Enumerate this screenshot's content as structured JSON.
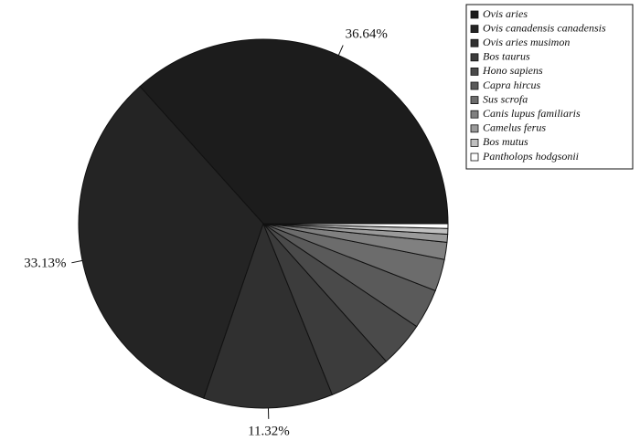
{
  "chart_data": {
    "type": "pie",
    "categories": [
      "Ovis aries",
      "Ovis canadensis canadensis",
      "Ovis aries musimon",
      "Bos taurus",
      "Hono sapiens",
      "Capra hircus",
      "Sus scrofa",
      "Canis lupus familiaris",
      "Camelus ferus",
      "Bos mutus",
      "Pantholops hodgsonii"
    ],
    "values": [
      36.64,
      33.13,
      11.32,
      5.5,
      4.0,
      3.5,
      2.8,
      1.5,
      0.7,
      0.5,
      0.41
    ],
    "value_labels": [
      "36.64%",
      "33.13%",
      "11.32%",
      null,
      null,
      null,
      null,
      null,
      null,
      null,
      null
    ],
    "colors": [
      "#1c1c1c",
      "#242424",
      "#303030",
      "#3c3c3c",
      "#4a4a4a",
      "#5a5a5a",
      "#6c6c6c",
      "#808080",
      "#9a9a9a",
      "#c0c0c0",
      "#ffffff"
    ]
  }
}
